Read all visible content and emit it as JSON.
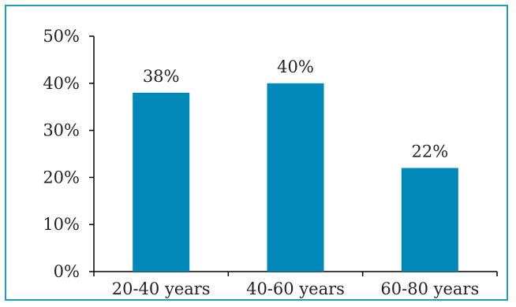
{
  "chart_data": {
    "type": "bar",
    "categories": [
      "20-40 years",
      "40-60 years",
      "60-80 years"
    ],
    "values": [
      38,
      40,
      22
    ],
    "data_labels": [
      "38%",
      "40%",
      "22%"
    ],
    "title": "",
    "xlabel": "",
    "ylabel": "",
    "ylim": [
      0,
      50
    ],
    "y_ticks": [
      0,
      10,
      20,
      30,
      40,
      50
    ],
    "y_tick_labels": [
      "0%",
      "10%",
      "20%",
      "30%",
      "40%",
      "50%"
    ],
    "grid": false,
    "legend": "none",
    "bar_color": "#0089b8",
    "frame_color": "#1f9bc4",
    "axis_color": "#000000"
  }
}
